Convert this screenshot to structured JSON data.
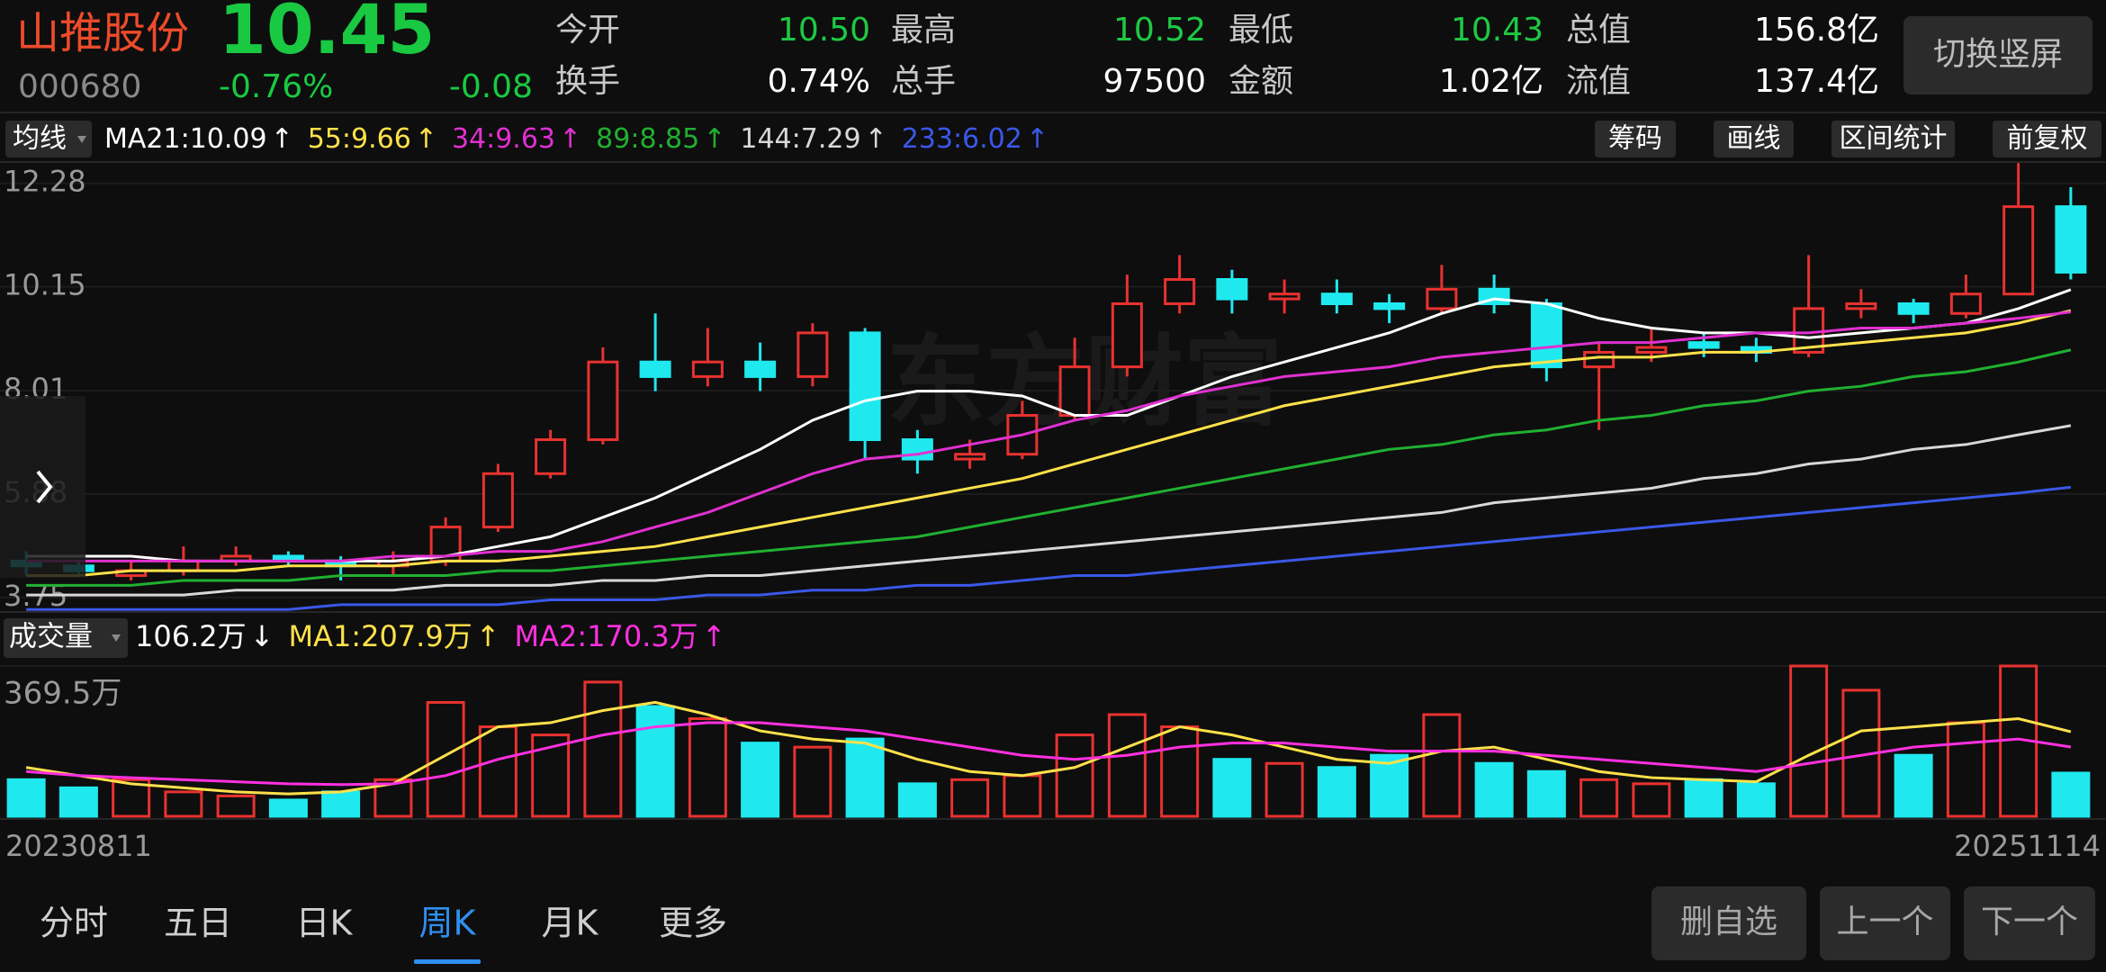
{
  "header": {
    "name": "山推股份",
    "price": "10.45",
    "code": "000680",
    "change_pct": "-0.76%",
    "change": "-0.08",
    "switch_button": "切换竖屏",
    "stats": [
      [
        {
          "label": "今开",
          "value": "10.50",
          "color": "#1fc844"
        },
        {
          "label": "最高",
          "value": "10.52",
          "color": "#1fc844"
        },
        {
          "label": "最低",
          "value": "10.43",
          "color": "#1fc844"
        },
        {
          "label": "总值",
          "value": "156.8亿",
          "color": "#ffffff"
        }
      ],
      [
        {
          "label": "换手",
          "value": "0.74%",
          "color": "#ffffff"
        },
        {
          "label": "总手",
          "value": "97500",
          "color": "#ffffff"
        },
        {
          "label": "金额",
          "value": "1.02亿",
          "color": "#ffffff"
        },
        {
          "label": "流值",
          "value": "137.4亿",
          "color": "#ffffff"
        }
      ]
    ]
  },
  "toolbar": {
    "ma_button": "均线",
    "ma_legend": [
      {
        "label": "MA21:10.09",
        "arrow": "↑",
        "color": "#ffffff"
      },
      {
        "label": "55:9.66",
        "arrow": "↑",
        "color": "#ffe14a"
      },
      {
        "label": "34:9.63",
        "arrow": "↑",
        "color": "#e030d0"
      },
      {
        "label": "89:8.85",
        "arrow": "↑",
        "color": "#20b030"
      },
      {
        "label": "144:7.29",
        "arrow": "↑",
        "color": "#d8d8d8"
      },
      {
        "label": "233:6.02",
        "arrow": "↑",
        "color": "#3a58e8"
      }
    ],
    "buttons": [
      "筹码",
      "画线",
      "区间统计",
      "前复权"
    ],
    "volume_button": "成交量",
    "volume_legend": [
      {
        "label": "106.2万",
        "arrow": "↓",
        "color": "#ffffff"
      },
      {
        "label": "MA1:207.9万",
        "arrow": "↑",
        "color": "#ffe14a"
      },
      {
        "label": "MA2:170.3万",
        "arrow": "↑",
        "color": "#ff30e0"
      }
    ]
  },
  "watermark": "东方财富",
  "chart_data": [
    {
      "type": "candlestick",
      "up_color": "#e8322f",
      "down_color": "#1fe9ef",
      "ylim": [
        3.45,
        12.72
      ],
      "yticks": [
        12.28,
        10.15,
        8.01,
        5.88,
        3.75
      ],
      "grid": true,
      "open": [
        4.5,
        4.4,
        4.2,
        4.3,
        4.5,
        4.6,
        4.5,
        4.4,
        4.5,
        5.2,
        6.3,
        7.0,
        8.6,
        8.3,
        8.6,
        8.3,
        9.2,
        7.0,
        6.6,
        6.7,
        7.5,
        8.5,
        9.8,
        10.3,
        9.9,
        10.0,
        9.8,
        9.7,
        10.1,
        9.8,
        8.5,
        8.8,
        9.0,
        8.9,
        8.8,
        9.7,
        9.8,
        9.6,
        10.0,
        11.8
      ],
      "high": [
        4.7,
        4.5,
        4.5,
        4.8,
        4.8,
        4.7,
        4.6,
        4.7,
        5.4,
        6.5,
        7.2,
        8.9,
        9.6,
        9.3,
        9.0,
        9.4,
        9.3,
        7.2,
        7.0,
        7.8,
        9.1,
        10.4,
        10.8,
        10.5,
        10.3,
        10.3,
        10.0,
        10.6,
        10.4,
        9.9,
        9.0,
        9.3,
        9.2,
        9.1,
        10.8,
        10.1,
        9.9,
        10.4,
        12.7,
        12.2
      ],
      "low": [
        4.2,
        4.2,
        4.1,
        4.2,
        4.4,
        4.4,
        4.1,
        4.2,
        4.4,
        5.1,
        6.2,
        6.9,
        8.0,
        8.1,
        8.0,
        8.1,
        6.6,
        6.3,
        6.4,
        6.6,
        7.4,
        8.3,
        9.6,
        9.6,
        9.6,
        9.6,
        9.4,
        9.6,
        9.6,
        8.2,
        7.2,
        8.6,
        8.7,
        8.6,
        8.7,
        9.5,
        9.4,
        9.5,
        10.0,
        10.3
      ],
      "close": [
        4.4,
        4.3,
        4.3,
        4.5,
        4.6,
        4.5,
        4.4,
        4.5,
        5.2,
        6.3,
        7.0,
        8.6,
        8.3,
        8.6,
        8.3,
        9.2,
        7.0,
        6.6,
        6.7,
        7.5,
        8.5,
        9.8,
        10.3,
        9.9,
        10.0,
        9.8,
        9.7,
        10.1,
        9.8,
        8.5,
        8.8,
        8.9,
        8.9,
        8.8,
        9.7,
        9.8,
        9.6,
        10.0,
        11.8,
        10.45
      ],
      "series": [
        {
          "color": "#ffffff",
          "values": [
            4.6,
            4.6,
            4.6,
            4.5,
            4.5,
            4.5,
            4.5,
            4.5,
            4.6,
            4.8,
            5.0,
            5.4,
            5.8,
            6.3,
            6.8,
            7.4,
            7.8,
            8.0,
            8.0,
            7.9,
            7.5,
            7.5,
            7.9,
            8.3,
            8.6,
            8.9,
            9.2,
            9.6,
            9.9,
            9.8,
            9.5,
            9.3,
            9.2,
            9.2,
            9.1,
            9.2,
            9.3,
            9.4,
            9.7,
            10.09
          ]
        },
        {
          "color": "#ffe14a",
          "values": [
            4.2,
            4.2,
            4.3,
            4.3,
            4.3,
            4.4,
            4.4,
            4.4,
            4.5,
            4.5,
            4.6,
            4.7,
            4.8,
            5.0,
            5.2,
            5.4,
            5.6,
            5.8,
            6.0,
            6.2,
            6.5,
            6.8,
            7.1,
            7.4,
            7.7,
            7.9,
            8.1,
            8.3,
            8.5,
            8.6,
            8.7,
            8.7,
            8.8,
            8.8,
            8.9,
            9.0,
            9.1,
            9.2,
            9.4,
            9.66
          ]
        },
        {
          "color": "#e030d0",
          "values": [
            4.5,
            4.5,
            4.5,
            4.5,
            4.5,
            4.5,
            4.5,
            4.6,
            4.6,
            4.7,
            4.7,
            4.9,
            5.2,
            5.5,
            5.9,
            6.3,
            6.6,
            6.7,
            6.9,
            7.1,
            7.4,
            7.6,
            7.9,
            8.1,
            8.3,
            8.4,
            8.5,
            8.7,
            8.8,
            8.9,
            9.0,
            9.0,
            9.1,
            9.2,
            9.2,
            9.3,
            9.3,
            9.4,
            9.5,
            9.63
          ]
        },
        {
          "color": "#20b030",
          "values": [
            4.0,
            4.0,
            4.0,
            4.1,
            4.1,
            4.1,
            4.2,
            4.2,
            4.2,
            4.3,
            4.3,
            4.4,
            4.5,
            4.6,
            4.7,
            4.8,
            4.9,
            5.0,
            5.2,
            5.4,
            5.6,
            5.8,
            6.0,
            6.2,
            6.4,
            6.6,
            6.8,
            6.9,
            7.1,
            7.2,
            7.4,
            7.5,
            7.7,
            7.8,
            8.0,
            8.1,
            8.3,
            8.4,
            8.6,
            8.85
          ]
        },
        {
          "color": "#d8d8d8",
          "values": [
            3.8,
            3.8,
            3.8,
            3.8,
            3.9,
            3.9,
            3.9,
            3.9,
            4.0,
            4.0,
            4.0,
            4.1,
            4.1,
            4.2,
            4.2,
            4.3,
            4.4,
            4.5,
            4.6,
            4.7,
            4.8,
            4.9,
            5.0,
            5.1,
            5.2,
            5.3,
            5.4,
            5.5,
            5.7,
            5.8,
            5.9,
            6.0,
            6.2,
            6.3,
            6.5,
            6.6,
            6.8,
            6.9,
            7.1,
            7.29
          ]
        },
        {
          "color": "#3a58e8",
          "values": [
            3.5,
            3.5,
            3.5,
            3.5,
            3.5,
            3.5,
            3.6,
            3.6,
            3.6,
            3.6,
            3.7,
            3.7,
            3.7,
            3.8,
            3.8,
            3.9,
            3.9,
            4.0,
            4.0,
            4.1,
            4.2,
            4.2,
            4.3,
            4.4,
            4.5,
            4.6,
            4.7,
            4.8,
            4.9,
            5.0,
            5.1,
            5.2,
            5.3,
            5.4,
            5.5,
            5.6,
            5.7,
            5.8,
            5.9,
            6.02
          ]
        }
      ]
    },
    {
      "type": "volume",
      "ylim": [
        0,
        369.5
      ],
      "yticks": [
        {
          "value": 369.5,
          "label": "369.5万"
        }
      ],
      "start_date": "20230811",
      "end_date": "20251114",
      "values": [
        90,
        70,
        90,
        60,
        50,
        40,
        60,
        90,
        280,
        220,
        200,
        330,
        270,
        240,
        180,
        170,
        190,
        80,
        90,
        100,
        200,
        250,
        220,
        140,
        130,
        120,
        150,
        250,
        130,
        110,
        90,
        80,
        90,
        80,
        369.5,
        310,
        150,
        230,
        369.5,
        106.2
      ],
      "series": [
        {
          "color": "#ffe14a",
          "values": [
            120,
            100,
            80,
            70,
            60,
            55,
            60,
            80,
            150,
            220,
            230,
            260,
            280,
            250,
            210,
            190,
            180,
            140,
            110,
            100,
            120,
            170,
            220,
            200,
            170,
            140,
            130,
            160,
            170,
            140,
            110,
            95,
            90,
            85,
            150,
            210,
            220,
            230,
            240,
            207.9
          ]
        },
        {
          "color": "#ff30e0",
          "values": [
            110,
            100,
            95,
            90,
            85,
            80,
            78,
            80,
            100,
            140,
            170,
            200,
            220,
            230,
            230,
            220,
            210,
            190,
            170,
            150,
            140,
            150,
            170,
            180,
            180,
            170,
            160,
            160,
            160,
            150,
            140,
            130,
            120,
            110,
            130,
            150,
            170,
            180,
            190,
            170.3
          ]
        }
      ]
    }
  ],
  "footer": {
    "tabs": [
      "分时",
      "五日",
      "日K",
      "周K",
      "月K",
      "更多"
    ],
    "active_tab": 3,
    "buttons": [
      "删自选",
      "上一个",
      "下一个"
    ]
  }
}
